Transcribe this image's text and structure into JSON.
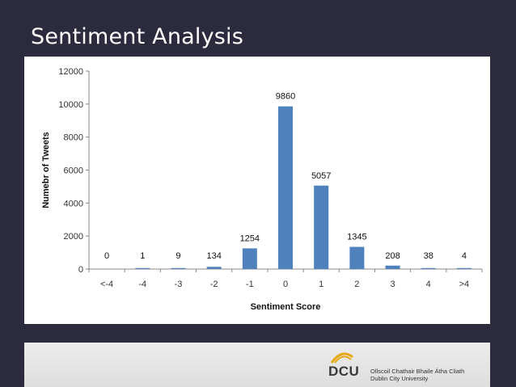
{
  "slide": {
    "title": "Sentiment Analysis"
  },
  "footer": {
    "logo_text": "DCU",
    "logo_line1": "Ollscoil Chathair Bhaile Átha Cliath",
    "logo_line2": "Dublin City University"
  },
  "colors": {
    "bar": "#4f81bd",
    "background": "#2b2b3d",
    "grid": "#d9d9d9",
    "logo_arc": "#e6a817"
  },
  "chart_data": {
    "type": "bar",
    "title": "",
    "xlabel": "Sentiment Score",
    "ylabel": "Numebr of Tweets",
    "categories": [
      "<-4",
      "-4",
      "-3",
      "-2",
      "-1",
      "0",
      "1",
      "2",
      "3",
      "4",
      ">4"
    ],
    "values": [
      0,
      1,
      9,
      134,
      1254,
      9860,
      5057,
      1345,
      208,
      38,
      4
    ],
    "ylim": [
      0,
      12000
    ],
    "yticks": [
      0,
      2000,
      4000,
      6000,
      8000,
      10000,
      12000
    ],
    "grid": false,
    "legend": "none"
  }
}
